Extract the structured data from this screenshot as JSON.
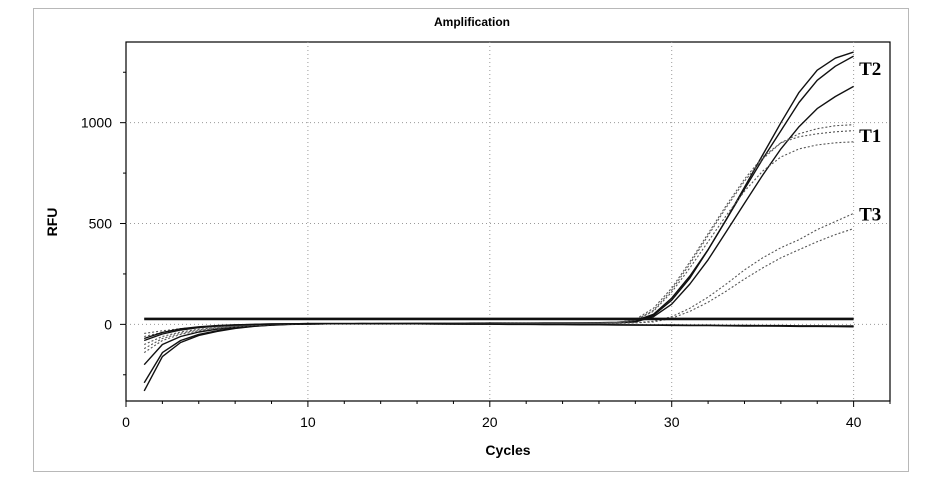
{
  "chart_data": {
    "type": "line",
    "title": "Amplification",
    "xlabel": "Cycles",
    "ylabel": "RFU",
    "xlim": [
      0,
      42
    ],
    "ylim": [
      -380,
      1400
    ],
    "xticks": [
      0,
      10,
      20,
      30,
      40
    ],
    "yticks": [
      0,
      500,
      1000
    ],
    "grid": true,
    "legend": "none",
    "annotations": [
      {
        "text": "T2",
        "x": 40.3,
        "y": 1270
      },
      {
        "text": "T1",
        "x": 40.3,
        "y": 940
      },
      {
        "text": "T3",
        "x": 40.3,
        "y": 550
      }
    ],
    "x": [
      1,
      2,
      3,
      4,
      5,
      6,
      7,
      8,
      9,
      10,
      11,
      12,
      13,
      14,
      15,
      16,
      17,
      18,
      19,
      20,
      21,
      22,
      23,
      24,
      25,
      26,
      27,
      28,
      29,
      30,
      31,
      32,
      33,
      34,
      35,
      36,
      37,
      38,
      39,
      40
    ],
    "series": [
      {
        "style": "solid",
        "values": [
          -330,
          -160,
          -90,
          -55,
          -35,
          -20,
          -10,
          -4,
          0,
          2,
          3,
          3,
          4,
          4,
          4,
          5,
          5,
          5,
          5,
          6,
          6,
          6,
          6,
          6,
          7,
          7,
          8,
          15,
          45,
          120,
          230,
          370,
          520,
          680,
          840,
          1000,
          1150,
          1260,
          1320,
          1350
        ]
      },
      {
        "style": "solid",
        "values": [
          -290,
          -140,
          -80,
          -50,
          -32,
          -18,
          -9,
          -3,
          1,
          2,
          3,
          3,
          4,
          4,
          5,
          5,
          5,
          5,
          6,
          6,
          6,
          6,
          7,
          7,
          7,
          8,
          10,
          18,
          50,
          130,
          240,
          370,
          520,
          670,
          820,
          960,
          1100,
          1210,
          1280,
          1330
        ]
      },
      {
        "style": "solid",
        "values": [
          -200,
          -100,
          -60,
          -38,
          -24,
          -14,
          -6,
          -2,
          1,
          2,
          3,
          3,
          3,
          4,
          4,
          4,
          4,
          5,
          5,
          5,
          5,
          5,
          6,
          6,
          6,
          6,
          7,
          12,
          38,
          100,
          200,
          320,
          460,
          600,
          740,
          870,
          980,
          1070,
          1130,
          1180
        ]
      },
      {
        "style": "dotted",
        "values": [
          -140,
          -80,
          -50,
          -32,
          -20,
          -12,
          -5,
          -1,
          1,
          2,
          3,
          3,
          3,
          4,
          4,
          4,
          4,
          5,
          5,
          5,
          5,
          5,
          6,
          6,
          6,
          6,
          8,
          20,
          70,
          170,
          300,
          440,
          580,
          710,
          820,
          900,
          945,
          970,
          985,
          990
        ]
      },
      {
        "style": "dotted",
        "values": [
          -120,
          -70,
          -44,
          -28,
          -18,
          -10,
          -4,
          0,
          2,
          3,
          3,
          3,
          4,
          4,
          4,
          4,
          4,
          5,
          5,
          5,
          5,
          6,
          6,
          6,
          6,
          7,
          9,
          24,
          80,
          180,
          310,
          450,
          590,
          720,
          830,
          900,
          930,
          945,
          955,
          960
        ]
      },
      {
        "style": "dotted",
        "values": [
          -100,
          -60,
          -38,
          -24,
          -15,
          -8,
          -3,
          0,
          2,
          3,
          3,
          3,
          4,
          4,
          4,
          4,
          5,
          5,
          5,
          5,
          6,
          6,
          6,
          6,
          7,
          7,
          9,
          20,
          65,
          160,
          280,
          410,
          540,
          660,
          760,
          830,
          870,
          890,
          900,
          905
        ]
      },
      {
        "style": "dotted",
        "values": [
          -60,
          -40,
          -26,
          -17,
          -11,
          -6,
          -2,
          0,
          2,
          3,
          3,
          3,
          3,
          4,
          4,
          4,
          4,
          4,
          5,
          5,
          5,
          5,
          5,
          5,
          6,
          6,
          6,
          8,
          15,
          38,
          80,
          135,
          200,
          270,
          330,
          380,
          420,
          470,
          510,
          550
        ]
      },
      {
        "style": "dotted",
        "values": [
          -45,
          -32,
          -21,
          -14,
          -9,
          -5,
          -2,
          0,
          1,
          2,
          2,
          3,
          3,
          3,
          3,
          4,
          4,
          4,
          4,
          4,
          4,
          5,
          5,
          5,
          5,
          5,
          5,
          7,
          12,
          30,
          65,
          110,
          165,
          225,
          280,
          330,
          370,
          410,
          445,
          475
        ]
      },
      {
        "style": "solid",
        "values": [
          30,
          30,
          30,
          30,
          30,
          30,
          30,
          30,
          30,
          30,
          30,
          30,
          30,
          30,
          30,
          30,
          30,
          30,
          30,
          30,
          30,
          30,
          30,
          30,
          30,
          30,
          30,
          30,
          30,
          30,
          30,
          30,
          30,
          30,
          30,
          30,
          30,
          30,
          30,
          30
        ]
      },
      {
        "style": "solid",
        "values": [
          24,
          24,
          24,
          24,
          24,
          24,
          24,
          24,
          24,
          24,
          24,
          24,
          24,
          24,
          24,
          24,
          24,
          24,
          24,
          24,
          24,
          24,
          24,
          24,
          24,
          24,
          24,
          24,
          24,
          24,
          24,
          24,
          24,
          24,
          24,
          24,
          24,
          24,
          24,
          24
        ]
      },
      {
        "style": "solid",
        "values": [
          -70,
          -40,
          -22,
          -12,
          -6,
          -2,
          0,
          2,
          3,
          4,
          4,
          4,
          4,
          4,
          3,
          3,
          3,
          2,
          2,
          2,
          1,
          1,
          0,
          0,
          -1,
          -1,
          -2,
          -2,
          -3,
          -3,
          -4,
          -4,
          -5,
          -5,
          -6,
          -6,
          -7,
          -7,
          -8,
          -8
        ]
      },
      {
        "style": "solid",
        "values": [
          -80,
          -48,
          -28,
          -16,
          -8,
          -3,
          0,
          2,
          3,
          4,
          4,
          4,
          4,
          3,
          3,
          3,
          2,
          2,
          1,
          1,
          0,
          0,
          -1,
          -1,
          -2,
          -2,
          -3,
          -4,
          -4,
          -5,
          -6,
          -6,
          -7,
          -8,
          -8,
          -9,
          -10,
          -10,
          -11,
          -12
        ]
      }
    ]
  }
}
